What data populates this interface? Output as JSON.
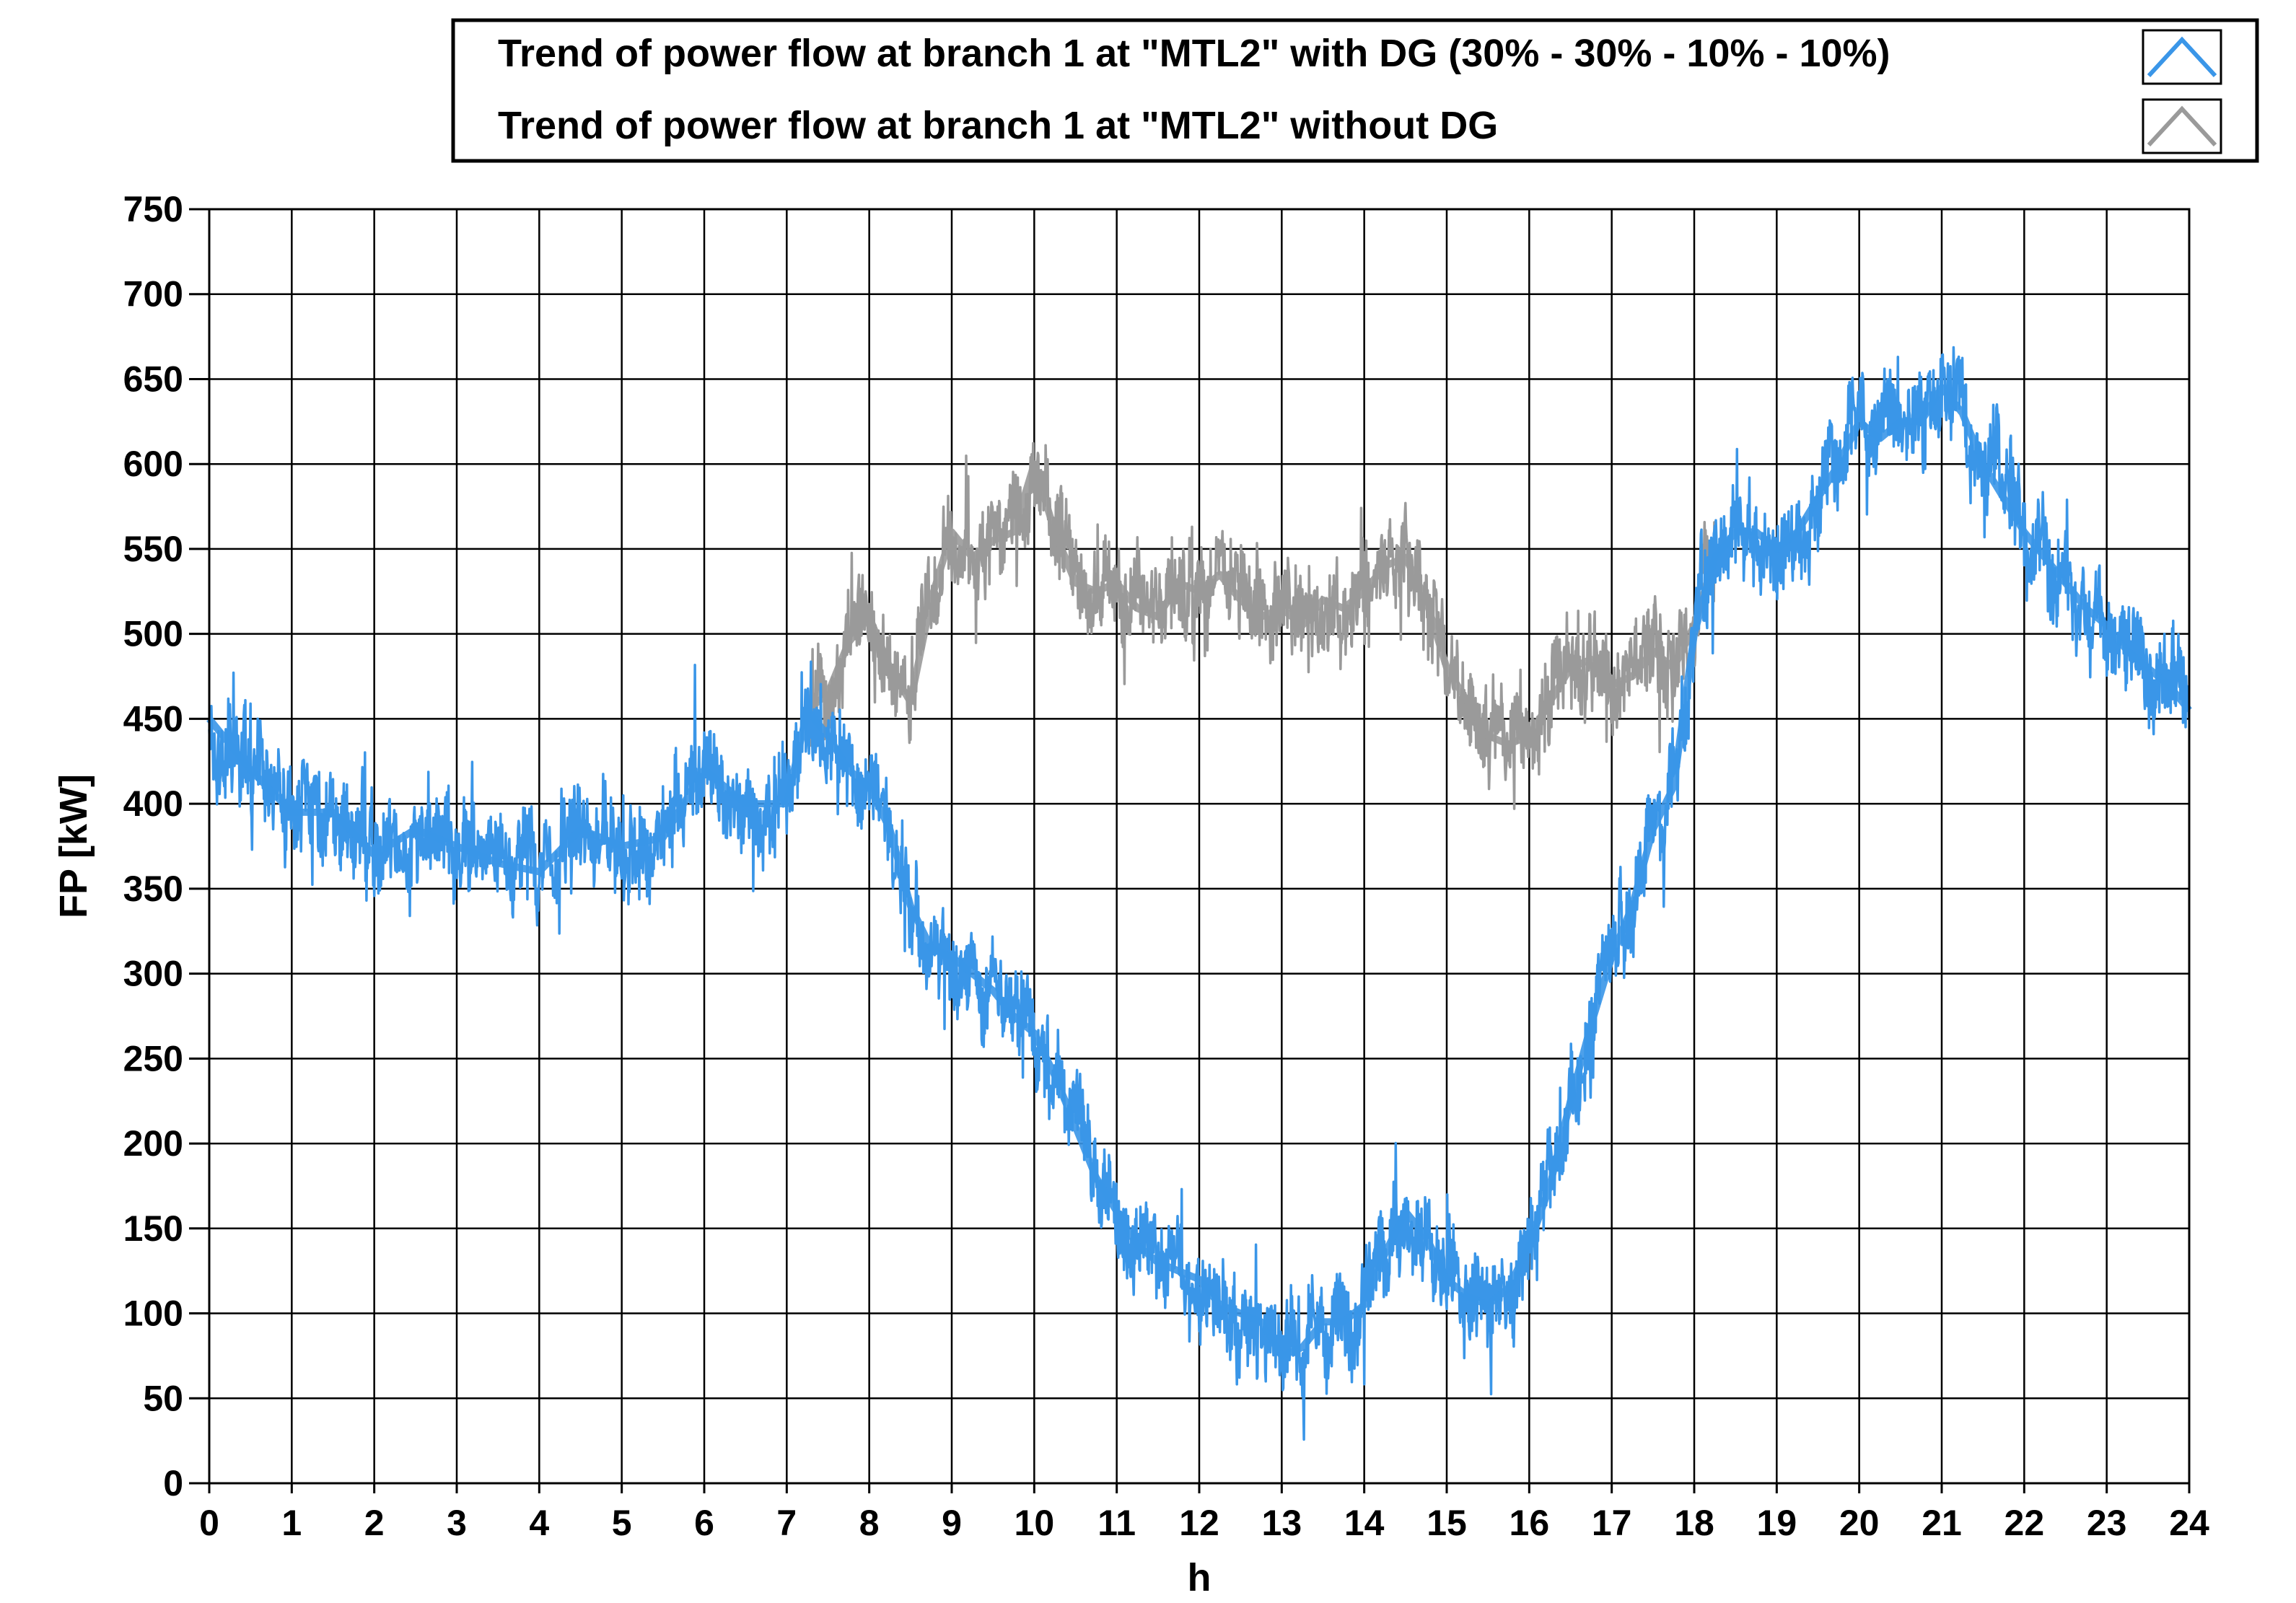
{
  "chart_data": {
    "type": "line",
    "title": "",
    "xlabel": "h",
    "ylabel": "FP [kW]",
    "xlim": [
      0,
      24
    ],
    "ylim": [
      0,
      750
    ],
    "xticks": [
      0,
      1,
      2,
      3,
      4,
      5,
      6,
      7,
      8,
      9,
      10,
      11,
      12,
      13,
      14,
      15,
      16,
      17,
      18,
      19,
      20,
      21,
      22,
      23,
      24
    ],
    "yticks": [
      0,
      50,
      100,
      150,
      200,
      250,
      300,
      350,
      400,
      450,
      500,
      550,
      600,
      650,
      700,
      750
    ],
    "grid": true,
    "legend_position": "top-right",
    "series": [
      {
        "name": "Trend of power flow at branch 1 at \"MTL2\" with DG (30% - 30% - 10% - 10%)",
        "color": "#3a96e8",
        "x": [
          0,
          0.5,
          1,
          1.5,
          2,
          2.5,
          3,
          3.5,
          4,
          4.5,
          5,
          5.5,
          6,
          6.5,
          7,
          7.25,
          7.5,
          7.75,
          8,
          8.25,
          8.5,
          8.75,
          9,
          9.25,
          9.5,
          9.75,
          10,
          10.25,
          10.5,
          10.75,
          11,
          11.25,
          11.5,
          11.75,
          12,
          12.25,
          12.5,
          12.75,
          13,
          13.25,
          13.5,
          13.75,
          14,
          14.25,
          14.5,
          14.75,
          15,
          15.25,
          15.5,
          15.75,
          16,
          16.25,
          16.5,
          16.75,
          17,
          17.25,
          17.5,
          17.75,
          18,
          18.25,
          18.5,
          18.75,
          19,
          19.25,
          19.5,
          19.75,
          20,
          20.25,
          20.5,
          20.75,
          21,
          21.25,
          21.5,
          21.75,
          22,
          22.25,
          22.5,
          22.75,
          23,
          23.25,
          23.5,
          23.75,
          24
        ],
        "y": [
          450,
          420,
          395,
          395,
          370,
          385,
          375,
          365,
          360,
          385,
          375,
          380,
          420,
          400,
          400,
          455,
          440,
          420,
          410,
          385,
          340,
          315,
          310,
          300,
          290,
          275,
          265,
          240,
          210,
          180,
          160,
          140,
          130,
          125,
          120,
          105,
          100,
          95,
          75,
          80,
          95,
          95,
          105,
          135,
          160,
          145,
          120,
          110,
          105,
          115,
          140,
          175,
          225,
          270,
          310,
          340,
          385,
          410,
          500,
          545,
          560,
          560,
          550,
          560,
          580,
          600,
          625,
          615,
          625,
          625,
          645,
          630,
          600,
          580,
          560,
          545,
          530,
          515,
          505,
          490,
          480,
          470,
          455
        ]
      },
      {
        "name": "Trend of power flow at branch 1 at \"MTL2\" without DG",
        "color": "#9a9a9a",
        "x": [
          7.25,
          7.5,
          7.75,
          8,
          8.25,
          8.5,
          8.75,
          9,
          9.25,
          9.5,
          9.75,
          10,
          10.25,
          10.5,
          10.75,
          11,
          11.25,
          11.5,
          11.75,
          12,
          12.25,
          12.5,
          12.75,
          13,
          13.25,
          13.5,
          13.75,
          14,
          14.25,
          14.5,
          14.75,
          15,
          15.25,
          15.5,
          15.75,
          16,
          16.25,
          16.5,
          16.75,
          17,
          17.25,
          17.5,
          17.75,
          18,
          18.25
        ],
        "y": [
          455,
          465,
          495,
          510,
          480,
          460,
          520,
          560,
          545,
          555,
          560,
          600,
          560,
          530,
          525,
          530,
          515,
          510,
          530,
          525,
          535,
          520,
          510,
          515,
          505,
          520,
          515,
          525,
          540,
          545,
          520,
          480,
          460,
          440,
          435,
          440,
          460,
          480,
          485,
          470,
          475,
          490,
          480,
          505,
          545
        ]
      }
    ]
  }
}
